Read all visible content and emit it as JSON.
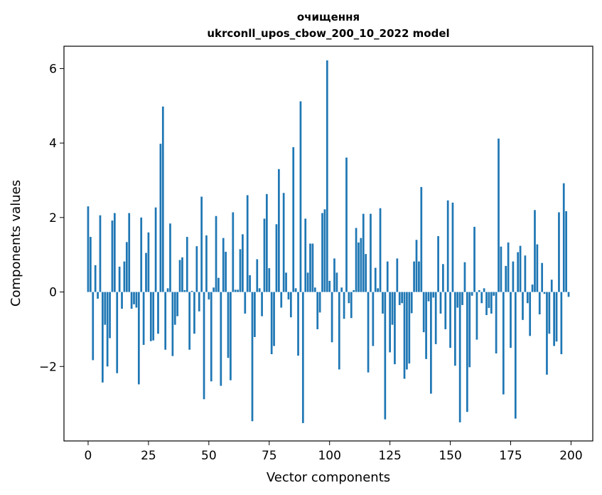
{
  "chart_data": {
    "type": "bar",
    "title": "очищення",
    "subtitle": "ukrconll_upos_cbow_200_10_2022 model",
    "xlabel": "Vector components",
    "ylabel": "Components values",
    "xlim": [
      -10,
      209
    ],
    "ylim": [
      -4,
      6.6
    ],
    "xticks": [
      0,
      25,
      50,
      75,
      100,
      125,
      150,
      175,
      200
    ],
    "yticks": [
      -2,
      0,
      2,
      4,
      6
    ],
    "ytick_labels": [
      "−2",
      "0",
      "2",
      "4",
      "6"
    ],
    "grid": false,
    "legend": "none",
    "bar_color": "#1f77b4",
    "values": [
      2.3,
      1.48,
      -1.83,
      0.72,
      -0.18,
      2.06,
      -2.43,
      -0.88,
      -2.0,
      -1.24,
      1.92,
      2.12,
      -2.18,
      0.68,
      -0.45,
      0.82,
      1.34,
      2.12,
      -0.45,
      -0.33,
      -0.42,
      -2.48,
      2.0,
      -1.42,
      1.05,
      1.6,
      -1.32,
      -1.3,
      2.27,
      -1.12,
      3.98,
      4.98,
      -1.55,
      0.1,
      1.84,
      -1.72,
      -0.88,
      -0.65,
      0.86,
      0.93,
      0.05,
      1.48,
      -1.55,
      0.03,
      -1.12,
      1.23,
      -0.52,
      2.56,
      -2.88,
      1.52,
      -0.2,
      -2.4,
      0.12,
      2.04,
      0.38,
      -2.52,
      1.45,
      1.08,
      -1.77,
      -2.37,
      2.14,
      0.06,
      0.06,
      1.15,
      1.55,
      -0.58,
      2.6,
      0.45,
      -3.47,
      -1.21,
      0.88,
      0.1,
      -0.65,
      1.97,
      2.63,
      0.64,
      -1.67,
      -1.45,
      1.82,
      3.3,
      -0.42,
      2.66,
      0.52,
      -0.2,
      -0.68,
      3.89,
      0.1,
      -1.71,
      5.12,
      -3.52,
      1.97,
      0.52,
      1.3,
      1.3,
      0.12,
      -1.0,
      -0.55,
      2.12,
      2.22,
      6.22,
      0.3,
      -1.35,
      0.9,
      0.52,
      -2.08,
      0.12,
      -0.72,
      3.61,
      -0.3,
      -0.7,
      0.05,
      1.72,
      1.33,
      1.45,
      2.1,
      1.02,
      -2.16,
      2.1,
      -1.45,
      0.65,
      0.1,
      2.25,
      -0.58,
      -3.42,
      0.82,
      -1.62,
      -0.88,
      -1.94,
      0.9,
      -0.35,
      -0.3,
      -2.33,
      -2.08,
      -1.92,
      -0.57,
      0.82,
      1.4,
      0.82,
      2.82,
      -1.08,
      -1.8,
      -0.25,
      -2.73,
      -0.15,
      -1.4,
      1.5,
      -0.58,
      0.75,
      -1.0,
      2.46,
      -1.5,
      2.4,
      -1.98,
      -0.42,
      -3.5,
      -0.35,
      0.8,
      -3.22,
      -2.02,
      -0.1,
      1.75,
      -1.28,
      0.05,
      -0.3,
      0.1,
      -0.62,
      -0.43,
      -0.58,
      -0.1,
      -1.65,
      4.12,
      1.22,
      -2.75,
      0.7,
      1.33,
      -1.5,
      0.82,
      -3.4,
      1.07,
      1.24,
      -0.75,
      0.98,
      -0.3,
      -1.18,
      0.2,
      2.2,
      1.28,
      -0.6,
      0.78,
      -0.05,
      -2.22,
      -1.12,
      0.33,
      -1.45,
      -1.33,
      2.14,
      -1.67,
      2.92,
      2.17,
      -0.13
    ]
  }
}
